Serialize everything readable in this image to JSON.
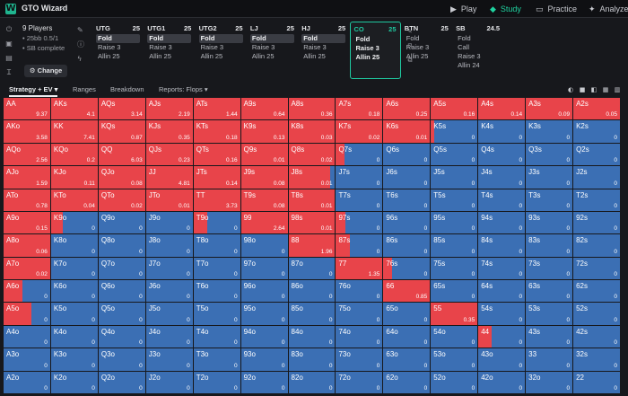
{
  "app": {
    "title": "GTO Wizard"
  },
  "nav": [
    {
      "label": "Play",
      "icon": "play-icon",
      "active": false
    },
    {
      "label": "Study",
      "icon": "graduation-cap-icon",
      "active": true
    },
    {
      "label": "Practice",
      "icon": "gamepad-icon",
      "active": false
    },
    {
      "label": "Analyze",
      "icon": "analyze-icon",
      "active": false
    }
  ],
  "config": {
    "players": "9 Players",
    "stakes": "• 25bb 0.5/1",
    "status": "• SB complete",
    "change_label": "Change"
  },
  "positions": [
    {
      "name": "UTG",
      "stack": "25",
      "actions": [
        "Fold",
        "Raise 3",
        "Allin 25"
      ],
      "selected": 0,
      "current": false
    },
    {
      "name": "UTG1",
      "stack": "25",
      "actions": [
        "Fold",
        "Raise 3",
        "Allin 25"
      ],
      "selected": 0,
      "current": false
    },
    {
      "name": "UTG2",
      "stack": "25",
      "actions": [
        "Fold",
        "Raise 3",
        "Allin 25"
      ],
      "selected": 0,
      "current": false
    },
    {
      "name": "LJ",
      "stack": "25",
      "actions": [
        "Fold",
        "Raise 3",
        "Allin 25"
      ],
      "selected": 0,
      "current": false
    },
    {
      "name": "HJ",
      "stack": "25",
      "actions": [
        "Fold",
        "Raise 3",
        "Allin 25"
      ],
      "selected": 0,
      "current": false
    },
    {
      "name": "CO",
      "stack": "25",
      "actions": [
        "Fold",
        "Raise 3",
        "Allin 25"
      ],
      "selected": -1,
      "current": true
    },
    {
      "name": "BTN",
      "stack": "25",
      "actions": [
        "Fold",
        "Raise 3",
        "Allin 25"
      ],
      "selected": -1,
      "current": false
    },
    {
      "name": "SB",
      "stack": "24.5",
      "actions": [
        "Fold",
        "Call",
        "Raise 3",
        "Allin 24"
      ],
      "selected": -1,
      "current": false
    }
  ],
  "tabs": [
    {
      "label": "Strategy + EV",
      "active": true,
      "dropdown": true
    },
    {
      "label": "Ranges",
      "active": false,
      "dropdown": false
    },
    {
      "label": "Breakdown",
      "active": false,
      "dropdown": false
    },
    {
      "label": "Reports: Flops",
      "active": false,
      "dropdown": true
    }
  ],
  "colors": {
    "raise": "#e8444a",
    "fold": "#3b6fb4",
    "accent": "#1fc9a0"
  },
  "ranks": [
    "A",
    "K",
    "Q",
    "J",
    "T",
    "9",
    "8",
    "7",
    "6",
    "5",
    "4",
    "3",
    "2"
  ],
  "rows": [
    [
      "AA 1 9.37",
      "AKs 1 4.1",
      "AQs 1 3.14",
      "AJs 1 2.19",
      "ATs 1 1.44",
      "A9s 1 0.64",
      "A8s 1 0.36",
      "A7s 1 0.18",
      "A6s 1 0.25",
      "A5s 1 0.16",
      "A4s 1 0.14",
      "A3s 1 0.09",
      "A2s 1 0.05"
    ],
    [
      "AKo 1 3.58",
      "KK 1 7.41",
      "KQs 1 0.87",
      "KJs 1 0.35",
      "KTs 1 0.18",
      "K9s 1 0.13",
      "K8s 1 0.03",
      "K7s 1 0.02",
      "K6s 1 0.01",
      "K5s 0.08 0",
      "K4s 0 0",
      "K3s 0 0",
      "K2s 0 0"
    ],
    [
      "AQo 1 2.56",
      "KQo 1 0.2",
      "QQ 1 6.03",
      "QJs 1 0.23",
      "QTs 1 0.16",
      "Q9s 1 0.01",
      "Q8s 1 0.02",
      "Q7s 0.18 0",
      "Q6s 0 0",
      "Q5s 0 0",
      "Q4s 0 0",
      "Q3s 0 0",
      "Q2s 0 0"
    ],
    [
      "AJo 1 1.59",
      "KJo 1 0.11",
      "QJo 1 0.08",
      "JJ 1 4.81",
      "JTs 1 0.14",
      "J9s 1 0.08",
      "J8s 0.9 0.01",
      "J7s 0 0",
      "J6s 0 0",
      "J5s 0 0",
      "J4s 0 0",
      "J3s 0 0",
      "J2s 0 0"
    ],
    [
      "ATo 1 0.78",
      "KTo 1 0.04",
      "QTo 1 0.02",
      "JTo 1 0.01",
      "TT 1 3.73",
      "T9s 1 0.08",
      "T8s 1 0.01",
      "T7s 0 0",
      "T6s 0 0",
      "T5s 0 0",
      "T4s 0 0",
      "T3s 0 0",
      "T2s 0 0"
    ],
    [
      "A9o 1 0.15",
      "K9o 0.25 0",
      "Q9o 0 0",
      "J9o 0 0",
      "T9o 0.3 0",
      "99 1 2.64",
      "98s 1 0.01",
      "97s 0.2 0",
      "96s 0 0",
      "95s 0 0",
      "94s 0 0",
      "93s 0 0",
      "92s 0 0"
    ],
    [
      "A8o 1 0.06",
      "K8o 0 0",
      "Q8o 0 0",
      "J8o 0 0",
      "T8o 0 0",
      "98o 0 0",
      "88 1 1.96",
      "87s 0.3 0",
      "86s 0 0",
      "85s 0 0",
      "84s 0 0",
      "83s 0 0",
      "82s 0 0"
    ],
    [
      "A7o 1 0.02",
      "K7o 0 0",
      "Q7o 0 0",
      "J7o 0 0",
      "T7o 0 0",
      "97o 0 0",
      "87o 0 0",
      "77 1 1.35",
      "76s 0.18 0",
      "75s 0 0",
      "74s 0 0",
      "73s 0 0",
      "72s 0 0"
    ],
    [
      "A6o 0.4 0",
      "K6o 0 0",
      "Q6o 0 0",
      "J6o 0 0",
      "T6o 0 0",
      "96o 0 0",
      "86o 0 0",
      "76o 0 0",
      "66 1 0.85",
      "65s 0 0",
      "64s 0 0",
      "63s 0 0",
      "62s 0 0"
    ],
    [
      "A5o 0.6 0",
      "K5o 0 0",
      "Q5o 0 0",
      "J5o 0 0",
      "T5o 0 0",
      "95o 0 0",
      "85o 0 0",
      "75o 0 0",
      "65o 0 0",
      "55 1 0.35",
      "54s 0 0",
      "53s 0 0",
      "52s 0 0"
    ],
    [
      "A4o 0 0",
      "K4o 0 0",
      "Q4o 0 0",
      "J4o 0 0",
      "T4o 0 0",
      "94o 0 0",
      "84o 0 0",
      "74o 0 0",
      "64o 0 0",
      "54o 0 0",
      "44 0.28 0",
      "43s 0 0",
      "42s 0 0"
    ],
    [
      "A3o 0 0",
      "K3o 0 0",
      "Q3o 0 0",
      "J3o 0 0",
      "T3o 0 0",
      "93o 0 0",
      "83o 0 0",
      "73o 0 0",
      "63o 0 0",
      "53o 0 0",
      "43o 0 0",
      "33 0 0",
      "32s 0 0"
    ],
    [
      "A2o 0 0",
      "K2o 0 0",
      "Q2o 0 0",
      "J2o 0 0",
      "T2o 0 0",
      "92o 0 0",
      "82o 0 0",
      "72o 0 0",
      "62o 0 0",
      "52o 0 0",
      "42o 0 0",
      "32o 0 0",
      "22 0 0"
    ]
  ]
}
